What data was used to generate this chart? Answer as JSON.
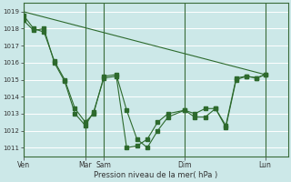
{
  "xlabel": "Pression niveau de la mer( hPa )",
  "background_color": "#cce8e8",
  "grid_color": "#b8d8d8",
  "line_color": "#2d6a2d",
  "ylim": [
    1010.5,
    1019.5
  ],
  "yticks": [
    1011,
    1012,
    1013,
    1014,
    1015,
    1016,
    1017,
    1018,
    1019
  ],
  "xtick_labels": [
    "Ven",
    "Mar",
    "Sam",
    "Dim",
    "Lun"
  ],
  "xtick_positions": [
    0,
    60,
    78,
    156,
    234
  ],
  "xlim": [
    0,
    256
  ],
  "vline_positions": [
    0,
    60,
    78,
    156,
    234
  ],
  "series1_x": [
    0,
    234
  ],
  "series1_y": [
    1019.0,
    1015.3
  ],
  "series2_x": [
    0,
    10,
    20,
    30,
    40,
    50,
    60,
    68,
    78,
    90,
    100,
    110,
    120,
    130,
    140,
    156,
    166,
    176,
    186,
    196,
    206,
    216,
    226,
    234
  ],
  "series2_y": [
    1018.8,
    1018.0,
    1017.8,
    1016.1,
    1015.0,
    1013.3,
    1012.5,
    1013.0,
    1015.2,
    1015.3,
    1013.2,
    1011.5,
    1011.0,
    1012.0,
    1012.8,
    1013.2,
    1013.0,
    1013.3,
    1013.3,
    1012.3,
    1015.1,
    1015.2,
    1015.1,
    1015.3
  ],
  "series3_x": [
    0,
    10,
    20,
    30,
    40,
    50,
    60,
    68,
    78,
    90,
    100,
    110,
    120,
    130,
    140,
    156,
    166,
    176,
    186,
    196,
    206,
    216,
    226,
    234
  ],
  "series3_y": [
    1018.5,
    1017.9,
    1018.0,
    1016.0,
    1014.9,
    1013.0,
    1012.3,
    1013.1,
    1015.1,
    1015.2,
    1011.0,
    1011.1,
    1011.5,
    1012.5,
    1013.0,
    1013.2,
    1012.8,
    1012.8,
    1013.3,
    1012.2,
    1015.0,
    1015.2,
    1015.1,
    1015.3
  ],
  "marker_size": 2.5
}
